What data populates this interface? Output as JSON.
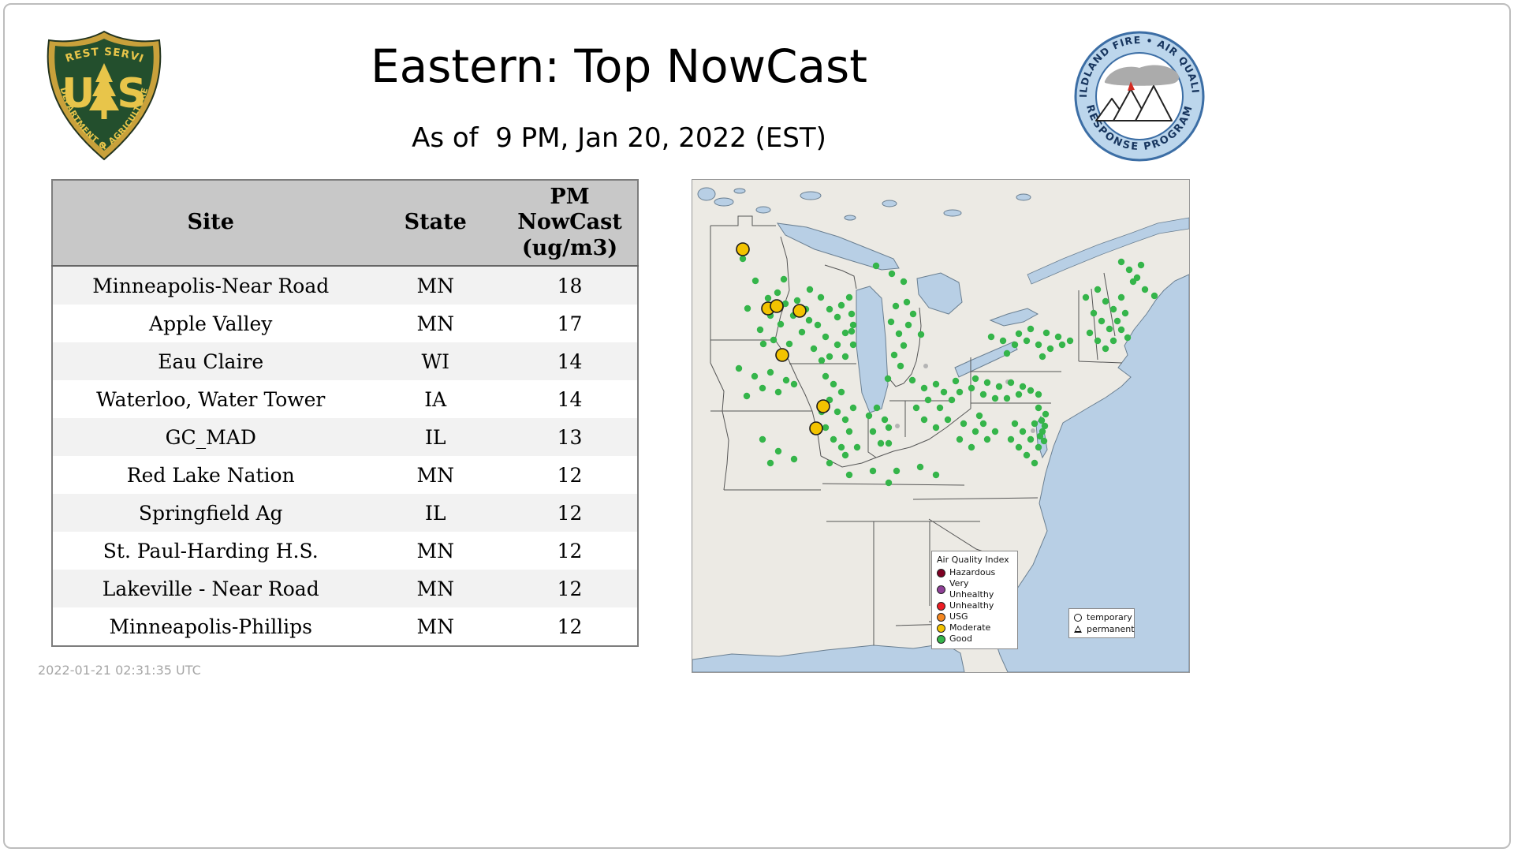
{
  "header": {
    "title": "Eastern: Top NowCast",
    "subtitle": "As of  9 PM, Jan 20, 2022 (EST)",
    "usfs_logo": {
      "arc_top": "FOREST SERVICE",
      "us": "US",
      "arc_bottom": "DEPARTMENT OF AGRICULTURE"
    },
    "wfaqrp_logo": {
      "arc_top": "WILDLAND FIRE • AIR QUALITY",
      "arc_bottom": "RESPONSE PROGRAM"
    }
  },
  "table": {
    "columns": [
      "Site",
      "State",
      "PM NowCast (ug/m3)"
    ],
    "rows": [
      {
        "site": "Minneapolis-Near Road",
        "state": "MN",
        "pm_nowcast": 18
      },
      {
        "site": "Apple Valley",
        "state": "MN",
        "pm_nowcast": 17
      },
      {
        "site": "Eau Claire",
        "state": "WI",
        "pm_nowcast": 14
      },
      {
        "site": "Waterloo, Water Tower",
        "state": "IA",
        "pm_nowcast": 14
      },
      {
        "site": "GC_MAD",
        "state": "IL",
        "pm_nowcast": 13
      },
      {
        "site": "Red Lake Nation",
        "state": "MN",
        "pm_nowcast": 12
      },
      {
        "site": "Springfield Ag",
        "state": "IL",
        "pm_nowcast": 12
      },
      {
        "site": "St. Paul-Harding H.S.",
        "state": "MN",
        "pm_nowcast": 12
      },
      {
        "site": "Lakeville - Near Road",
        "state": "MN",
        "pm_nowcast": 12
      },
      {
        "site": "Minneapolis-Phillips",
        "state": "MN",
        "pm_nowcast": 12
      }
    ]
  },
  "chart_data": {
    "type": "table",
    "title": "Eastern: Top NowCast",
    "subtitle": "As of  9 PM, Jan 20, 2022 (EST)",
    "columns": [
      "Site",
      "State",
      "PM NowCast (ug/m3)"
    ],
    "rows": [
      [
        "Minneapolis-Near Road",
        "MN",
        18
      ],
      [
        "Apple Valley",
        "MN",
        17
      ],
      [
        "Eau Claire",
        "WI",
        14
      ],
      [
        "Waterloo, Water Tower",
        "IA",
        14
      ],
      [
        "GC_MAD",
        "IL",
        13
      ],
      [
        "Red Lake Nation",
        "MN",
        12
      ],
      [
        "Springfield Ag",
        "IL",
        12
      ],
      [
        "St. Paul-Harding H.S.",
        "MN",
        12
      ],
      [
        "Lakeville - Near Road",
        "MN",
        12
      ],
      [
        "Minneapolis-Phillips",
        "MN",
        12
      ]
    ]
  },
  "map": {
    "legend": {
      "title": "Air Quality Index",
      "items": [
        {
          "label": "Hazardous",
          "color": "#7e0023"
        },
        {
          "label": "Very Unhealthy",
          "color": "#8f3f97"
        },
        {
          "label": "Unhealthy",
          "color": "#ed1c24"
        },
        {
          "label": "USG",
          "color": "#f58720"
        },
        {
          "label": "Moderate",
          "color": "#f3c300"
        },
        {
          "label": "Good",
          "color": "#35b54a"
        }
      ]
    },
    "marker_legend": {
      "temporary": "temporary",
      "permanent": "permanent"
    },
    "colors": {
      "good": "#35b54a",
      "moderate": "#f3c300",
      "inactive": "#b4b4b4"
    },
    "good_dots": [
      [
        64,
        100
      ],
      [
        80,
        128
      ],
      [
        96,
        150
      ],
      [
        108,
        143
      ],
      [
        118,
        157
      ],
      [
        99,
        172
      ],
      [
        86,
        190
      ],
      [
        112,
        183
      ],
      [
        128,
        172
      ],
      [
        103,
        203
      ],
      [
        123,
        208
      ],
      [
        139,
        193
      ],
      [
        148,
        178
      ],
      [
        70,
        163
      ],
      [
        133,
        153
      ],
      [
        116,
        126
      ],
      [
        90,
        208
      ],
      [
        149,
        139
      ],
      [
        163,
        149
      ],
      [
        174,
        164
      ],
      [
        184,
        174
      ],
      [
        159,
        184
      ],
      [
        169,
        199
      ],
      [
        184,
        209
      ],
      [
        194,
        194
      ],
      [
        204,
        184
      ],
      [
        154,
        214
      ],
      [
        174,
        224
      ],
      [
        194,
        224
      ],
      [
        204,
        209
      ],
      [
        144,
        164
      ],
      [
        189,
        159
      ],
      [
        202,
        170
      ],
      [
        199,
        149
      ],
      [
        164,
        229
      ],
      [
        202,
        192
      ],
      [
        233,
        109
      ],
      [
        253,
        119
      ],
      [
        268,
        129
      ],
      [
        258,
        160
      ],
      [
        252,
        180
      ],
      [
        262,
        195
      ],
      [
        268,
        210
      ],
      [
        274,
        184
      ],
      [
        272,
        155
      ],
      [
        256,
        222
      ],
      [
        264,
        236
      ],
      [
        248,
        252
      ],
      [
        290,
        196
      ],
      [
        280,
        170
      ],
      [
        59,
        239
      ],
      [
        79,
        249
      ],
      [
        99,
        244
      ],
      [
        119,
        254
      ],
      [
        89,
        264
      ],
      [
        69,
        274
      ],
      [
        109,
        269
      ],
      [
        129,
        259
      ],
      [
        169,
        249
      ],
      [
        179,
        259
      ],
      [
        189,
        269
      ],
      [
        174,
        279
      ],
      [
        184,
        294
      ],
      [
        194,
        304
      ],
      [
        169,
        314
      ],
      [
        179,
        329
      ],
      [
        189,
        339
      ],
      [
        199,
        319
      ],
      [
        164,
        294
      ],
      [
        204,
        289
      ],
      [
        194,
        349
      ],
      [
        174,
        359
      ],
      [
        209,
        339
      ],
      [
        89,
        329
      ],
      [
        109,
        344
      ],
      [
        129,
        354
      ],
      [
        99,
        359
      ],
      [
        224,
        299
      ],
      [
        234,
        289
      ],
      [
        244,
        304
      ],
      [
        229,
        319
      ],
      [
        239,
        334
      ],
      [
        249,
        314
      ],
      [
        249,
        334
      ],
      [
        279,
        254
      ],
      [
        294,
        264
      ],
      [
        309,
        259
      ],
      [
        319,
        269
      ],
      [
        299,
        279
      ],
      [
        284,
        289
      ],
      [
        314,
        289
      ],
      [
        329,
        279
      ],
      [
        294,
        304
      ],
      [
        309,
        314
      ],
      [
        324,
        304
      ],
      [
        339,
        269
      ],
      [
        334,
        255
      ],
      [
        229,
        369
      ],
      [
        259,
        369
      ],
      [
        289,
        364
      ],
      [
        309,
        374
      ],
      [
        199,
        374
      ],
      [
        249,
        384
      ],
      [
        359,
        252
      ],
      [
        374,
        257
      ],
      [
        389,
        262
      ],
      [
        404,
        257
      ],
      [
        419,
        262
      ],
      [
        369,
        272
      ],
      [
        384,
        277
      ],
      [
        399,
        277
      ],
      [
        414,
        272
      ],
      [
        429,
        267
      ],
      [
        354,
        264
      ],
      [
        439,
        272
      ],
      [
        379,
        199
      ],
      [
        394,
        204
      ],
      [
        409,
        209
      ],
      [
        424,
        204
      ],
      [
        439,
        209
      ],
      [
        454,
        214
      ],
      [
        469,
        209
      ],
      [
        429,
        189
      ],
      [
        449,
        194
      ],
      [
        464,
        199
      ],
      [
        479,
        204
      ],
      [
        444,
        224
      ],
      [
        414,
        195
      ],
      [
        399,
        220
      ],
      [
        499,
        149
      ],
      [
        514,
        139
      ],
      [
        524,
        154
      ],
      [
        534,
        164
      ],
      [
        544,
        149
      ],
      [
        509,
        169
      ],
      [
        519,
        179
      ],
      [
        529,
        189
      ],
      [
        539,
        179
      ],
      [
        549,
        169
      ],
      [
        504,
        194
      ],
      [
        514,
        204
      ],
      [
        524,
        214
      ],
      [
        534,
        204
      ],
      [
        559,
        129
      ],
      [
        544,
        190
      ],
      [
        552,
        200
      ],
      [
        544,
        104
      ],
      [
        554,
        114
      ],
      [
        564,
        124
      ],
      [
        574,
        139
      ],
      [
        586,
        147
      ],
      [
        569,
        108
      ],
      [
        439,
        289
      ],
      [
        448,
        297
      ],
      [
        443,
        305
      ],
      [
        434,
        309
      ],
      [
        444,
        319
      ],
      [
        447,
        312
      ],
      [
        429,
        329
      ],
      [
        439,
        339
      ],
      [
        446,
        331
      ],
      [
        424,
        349
      ],
      [
        434,
        359
      ],
      [
        414,
        339
      ],
      [
        404,
        329
      ],
      [
        419,
        319
      ],
      [
        409,
        309
      ],
      [
        441,
        325
      ],
      [
        344,
        309
      ],
      [
        359,
        319
      ],
      [
        374,
        329
      ],
      [
        354,
        339
      ],
      [
        339,
        329
      ],
      [
        369,
        309
      ],
      [
        384,
        319
      ],
      [
        364,
        299
      ]
    ],
    "moderate_dots": [
      [
        64,
        88
      ],
      [
        96,
        163
      ],
      [
        107,
        160
      ],
      [
        136,
        166
      ],
      [
        114,
        222
      ],
      [
        166,
        287
      ],
      [
        157,
        315
      ]
    ],
    "gray_dots": [
      [
        168,
        198
      ],
      [
        400,
        256
      ],
      [
        296,
        236
      ],
      [
        260,
        312
      ],
      [
        432,
        318
      ]
    ]
  },
  "footer": {
    "timestamp": "2022-01-21 02:31:35 UTC"
  }
}
